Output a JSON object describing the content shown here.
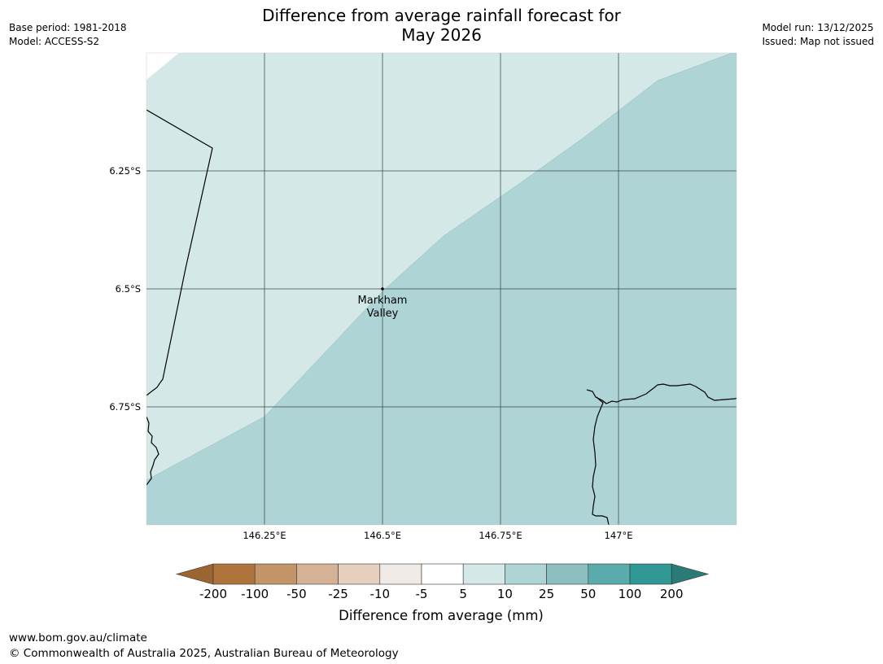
{
  "header": {
    "base_period": "Base period: 1981-2018",
    "model": "Model: ACCESS-S2",
    "model_run": "Model run: 13/12/2025",
    "issued": "Issued: Map not issued",
    "title_line1": "Difference from average rainfall forecast for",
    "title_line2": "May 2026"
  },
  "map": {
    "lat_ticks": [
      {
        "value": -6.25,
        "label": "6.25°S"
      },
      {
        "value": -6.5,
        "label": "6.5°S"
      },
      {
        "value": -6.75,
        "label": "6.75°S"
      }
    ],
    "lon_ticks": [
      {
        "value": 146.25,
        "label": "146.25°E"
      },
      {
        "value": 146.5,
        "label": "146.5°E"
      },
      {
        "value": 146.75,
        "label": "146.75°E"
      },
      {
        "value": 147.0,
        "label": "147°E"
      }
    ],
    "place": {
      "name_line1": "Markham",
      "name_line2": "Valley",
      "lat": -6.5,
      "lon": 146.5
    },
    "regions": [
      {
        "category": "5 to 10",
        "color": "#d5e8e8"
      },
      {
        "category": "10 to 25",
        "color": "#aed4d5"
      }
    ]
  },
  "legend": {
    "title": "Difference from average (mm)",
    "colors": [
      "#9a6530",
      "#ae743b",
      "#c39468",
      "#d5b295",
      "#e6cfbf",
      "#efeae6",
      "#ffffff",
      "#d5e8e8",
      "#aed4d5",
      "#8ebfc0",
      "#5aabac",
      "#2f9894",
      "#2a7a78"
    ],
    "labels": [
      "-200",
      "-100",
      "-50",
      "-25",
      "-10",
      "-5",
      "5",
      "10",
      "25",
      "50",
      "100",
      "200"
    ]
  },
  "footer": {
    "url": "www.bom.gov.au/climate",
    "copyright": "© Commonwealth of Australia 2025, Australian Bureau of Meteorology"
  }
}
